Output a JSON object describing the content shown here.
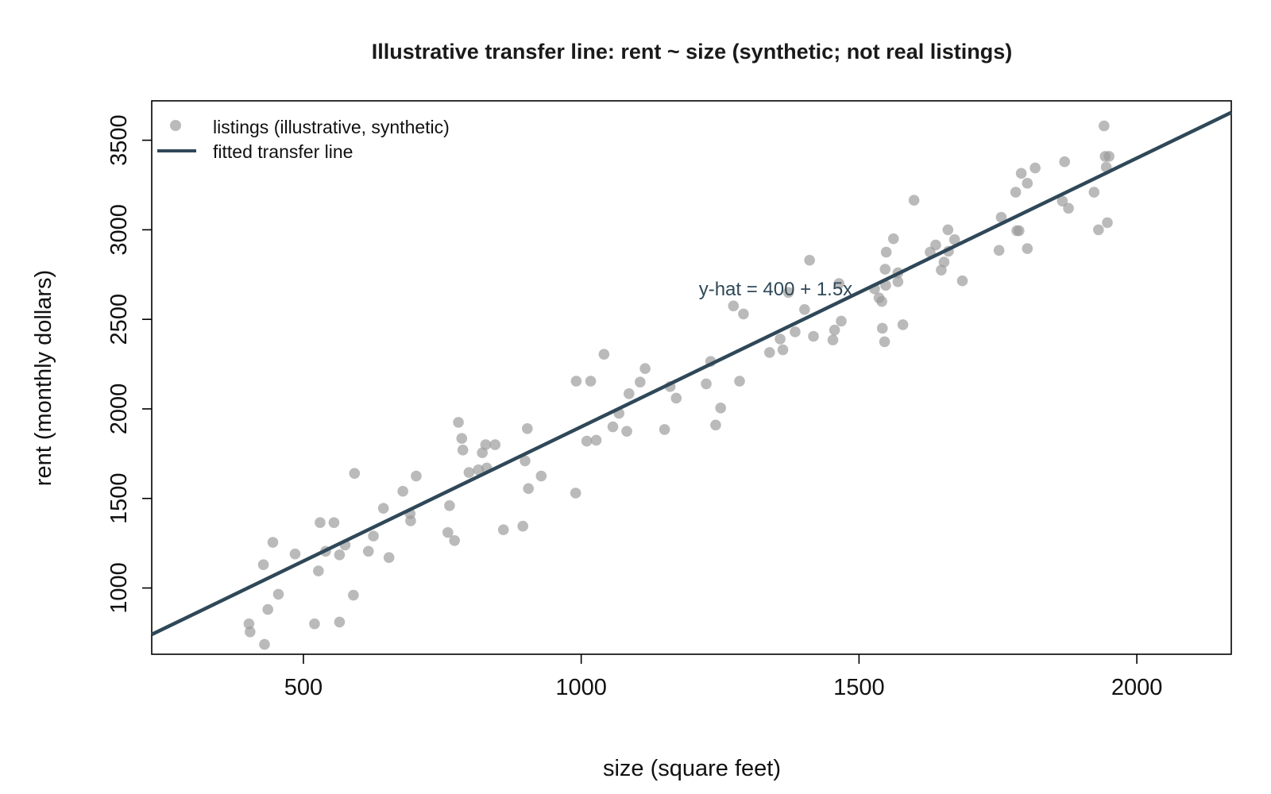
{
  "chart_data": {
    "type": "scatter",
    "title": "Illustrative transfer line: rent ~ size (synthetic; not real listings)",
    "xlabel": "size (square feet)",
    "ylabel": "rent (monthly dollars)",
    "xlim": [
      227,
      2170
    ],
    "ylim": [
      630,
      3720
    ],
    "xticks": [
      500,
      1000,
      1500,
      2000
    ],
    "yticks": [
      1000,
      1500,
      2000,
      2500,
      3000,
      3500
    ],
    "grid": false,
    "legend_position": "top-left",
    "legend": [
      {
        "label": "listings (illustrative, synthetic)",
        "kind": "point"
      },
      {
        "label": "fitted transfer line",
        "kind": "line"
      }
    ],
    "colors": {
      "points": "#999999",
      "line": "#2f4858",
      "annotation": "#2f4858"
    },
    "annotation": {
      "text": "y-hat = 400 + 1.5x",
      "x": 1350,
      "y": 2670
    },
    "fit_line": {
      "intercept": 400,
      "slope": 1.5
    },
    "series": [
      {
        "name": "listings (illustrative, synthetic)",
        "points": [
          [
            402,
            800
          ],
          [
            404,
            755
          ],
          [
            430,
            685
          ],
          [
            428,
            1130
          ],
          [
            436,
            880
          ],
          [
            445,
            1255
          ],
          [
            455,
            965
          ],
          [
            485,
            1190
          ],
          [
            520,
            800
          ],
          [
            527,
            1095
          ],
          [
            530,
            1365
          ],
          [
            540,
            1205
          ],
          [
            555,
            1365
          ],
          [
            565,
            1185
          ],
          [
            565,
            810
          ],
          [
            575,
            1240
          ],
          [
            590,
            960
          ],
          [
            592,
            1640
          ],
          [
            617,
            1205
          ],
          [
            626,
            1290
          ],
          [
            644,
            1445
          ],
          [
            654,
            1170
          ],
          [
            679,
            1540
          ],
          [
            692,
            1415
          ],
          [
            693,
            1375
          ],
          [
            703,
            1625
          ],
          [
            760,
            1310
          ],
          [
            763,
            1460
          ],
          [
            772,
            1265
          ],
          [
            779,
            1925
          ],
          [
            785,
            1835
          ],
          [
            787,
            1770
          ],
          [
            798,
            1645
          ],
          [
            815,
            1660
          ],
          [
            822,
            1755
          ],
          [
            828,
            1800
          ],
          [
            830,
            1670
          ],
          [
            845,
            1800
          ],
          [
            860,
            1325
          ],
          [
            895,
            1345
          ],
          [
            899,
            1710
          ],
          [
            903,
            1890
          ],
          [
            905,
            1555
          ],
          [
            928,
            1625
          ],
          [
            990,
            1530
          ],
          [
            991,
            2155
          ],
          [
            1010,
            1820
          ],
          [
            1017,
            2155
          ],
          [
            1027,
            1825
          ],
          [
            1041,
            2305
          ],
          [
            1057,
            1900
          ],
          [
            1068,
            1975
          ],
          [
            1082,
            1875
          ],
          [
            1086,
            2085
          ],
          [
            1106,
            2150
          ],
          [
            1115,
            2225
          ],
          [
            1150,
            1885
          ],
          [
            1160,
            2125
          ],
          [
            1171,
            2060
          ],
          [
            1225,
            2140
          ],
          [
            1233,
            2265
          ],
          [
            1242,
            1910
          ],
          [
            1251,
            2005
          ],
          [
            1274,
            2575
          ],
          [
            1285,
            2155
          ],
          [
            1292,
            2530
          ],
          [
            1339,
            2315
          ],
          [
            1358,
            2390
          ],
          [
            1363,
            2330
          ],
          [
            1373,
            2650
          ],
          [
            1385,
            2430
          ],
          [
            1402,
            2555
          ],
          [
            1411,
            2830
          ],
          [
            1418,
            2405
          ],
          [
            1453,
            2385
          ],
          [
            1456,
            2440
          ],
          [
            1464,
            2700
          ],
          [
            1468,
            2490
          ],
          [
            1528,
            2670
          ],
          [
            1536,
            2620
          ],
          [
            1541,
            2600
          ],
          [
            1542,
            2450
          ],
          [
            1546,
            2375
          ],
          [
            1548,
            2690
          ],
          [
            1547,
            2780
          ],
          [
            1549,
            2875
          ],
          [
            1562,
            2950
          ],
          [
            1570,
            2760
          ],
          [
            1570,
            2710
          ],
          [
            1579,
            2470
          ],
          [
            1599,
            3165
          ],
          [
            1628,
            2875
          ],
          [
            1638,
            2915
          ],
          [
            1648,
            2775
          ],
          [
            1653,
            2820
          ],
          [
            1661,
            2880
          ],
          [
            1660,
            3000
          ],
          [
            1672,
            2945
          ],
          [
            1686,
            2715
          ],
          [
            1752,
            2885
          ],
          [
            1756,
            3070
          ],
          [
            1782,
            3210
          ],
          [
            1784,
            2995
          ],
          [
            1788,
            2995
          ],
          [
            1792,
            3315
          ],
          [
            1803,
            2895
          ],
          [
            1803,
            3260
          ],
          [
            1817,
            3345
          ],
          [
            1866,
            3160
          ],
          [
            1870,
            3380
          ],
          [
            1877,
            3120
          ],
          [
            1923,
            3210
          ],
          [
            1931,
            3000
          ],
          [
            1941,
            3580
          ],
          [
            1945,
            3350
          ],
          [
            1943,
            3410
          ],
          [
            1947,
            3040
          ],
          [
            1950,
            3410
          ]
        ]
      }
    ]
  }
}
